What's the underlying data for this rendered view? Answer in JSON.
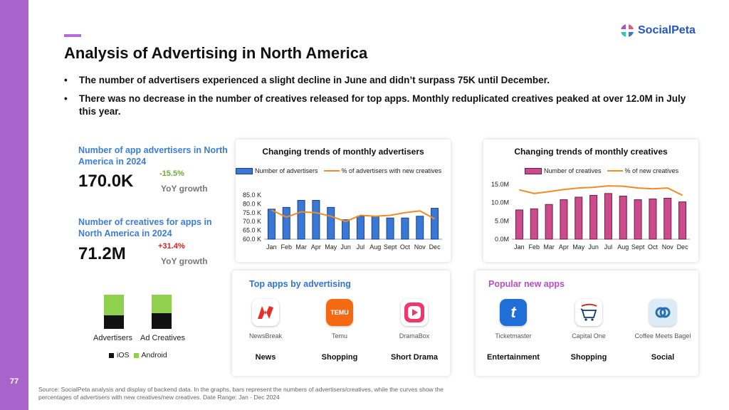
{
  "page_number": "77",
  "title": "Analysis of Advertising in North America",
  "logo_text": "SocialPeta",
  "bullets": [
    "The number of advertisers experienced a slight decline in June and didn’t surpass 75K until December.",
    "There was no decrease in the number of creatives released for top apps. Monthly reduplicated creatives peaked at over 12.0M in July this year."
  ],
  "stats": {
    "advertisers": {
      "label": "Number of app advertisers in North America in 2024",
      "value": "170.0K",
      "change": "-15.5%",
      "change_color": "#6aaa32",
      "sub": "YoY growth"
    },
    "creatives": {
      "label": "Number of creatives for apps in North America in 2024",
      "value": "71.2M",
      "change": "+31.4%",
      "change_color": "#e02020",
      "sub": "YoY growth"
    }
  },
  "platform_split": {
    "bars": [
      {
        "label": "Advertisers",
        "ios_share": 0.4
      },
      {
        "label": "Ad Creatives",
        "ios_share": 0.45
      }
    ],
    "legend": [
      {
        "label": "iOS",
        "color": "#111111"
      },
      {
        "label": "Android",
        "color": "#8fd14f"
      }
    ]
  },
  "chart_data": [
    {
      "type": "bar",
      "title": "Changing trends of monthly advertisers",
      "categories": [
        "Jan",
        "Feb",
        "Mar",
        "Apr",
        "May",
        "Jun",
        "Jul",
        "Aug",
        "Sept",
        "Oct",
        "Nov",
        "Dec"
      ],
      "ylim": [
        60,
        85
      ],
      "y_ticks": [
        "60.0 K",
        "65.0 K",
        "70.0 K",
        "75.0 K",
        "80.0 K",
        "85.0 K"
      ],
      "series": [
        {
          "name": "Number of advertisers",
          "kind": "bar",
          "color": "#3a78d8",
          "values": [
            77,
            78,
            82,
            82,
            78,
            71,
            73,
            73,
            72,
            72,
            73,
            77.5
          ]
        },
        {
          "name": "% of advertisers with new creatives",
          "kind": "line",
          "color": "#f28a25",
          "values": [
            76.5,
            72.5,
            75.5,
            75,
            73,
            70,
            73.5,
            73,
            73.5,
            75,
            76,
            71.5
          ]
        }
      ]
    },
    {
      "type": "bar",
      "title": "Changing trends of monthly creatives",
      "categories": [
        "Jan",
        "Feb",
        "Mar",
        "Apr",
        "May",
        "Jun",
        "Jul",
        "Aug",
        "Sept",
        "Oct",
        "Nov",
        "Dec"
      ],
      "ylim": [
        0,
        15
      ],
      "y_ticks": [
        "0.0M",
        "5.0M",
        "10.0M",
        "15.0M"
      ],
      "series": [
        {
          "name": "Number of creatives",
          "kind": "bar",
          "color": "#cc4b8c",
          "values": [
            8,
            8.3,
            9.5,
            10.8,
            11.5,
            12,
            12.5,
            11.8,
            10.8,
            11,
            11.2,
            10.2
          ]
        },
        {
          "name": "% of new creatives",
          "kind": "line",
          "color": "#f28a25",
          "values": [
            13.5,
            12.5,
            13,
            13.6,
            14,
            14.2,
            14.6,
            14.5,
            14,
            13.8,
            14,
            12
          ]
        }
      ]
    }
  ],
  "top_apps": {
    "title": "Top apps by advertising",
    "title_color": "#2f74d8",
    "apps": [
      {
        "name": "NewsBreak",
        "category": "News",
        "icon": "newsbreak-icon"
      },
      {
        "name": "Temu",
        "category": "Shopping",
        "icon": "temu-icon",
        "icon_text": "TEMU"
      },
      {
        "name": "DramaBox",
        "category": "Short Drama",
        "icon": "dramabox-icon"
      }
    ]
  },
  "popular_apps": {
    "title": "Popular new apps",
    "title_color": "#b94fc4",
    "apps": [
      {
        "name": "Ticketmaster",
        "category": "Entertainment",
        "icon": "ticketmaster-icon",
        "icon_text": "t"
      },
      {
        "name": "Capital One",
        "category": "Shopping",
        "icon": "capital-one-icon"
      },
      {
        "name": "Coffee Meets Bagel",
        "category": "Social",
        "icon": "coffee-meets-bagel-icon"
      }
    ]
  },
  "footnote": "Source: SocialPeta analysis and display of backend data. In the graphs, bars represent the numbers of advertisers/creatives, while the curves show the percentages of advertisers with new creatives/new creatives. Date Range: Jan - Dec 2024"
}
